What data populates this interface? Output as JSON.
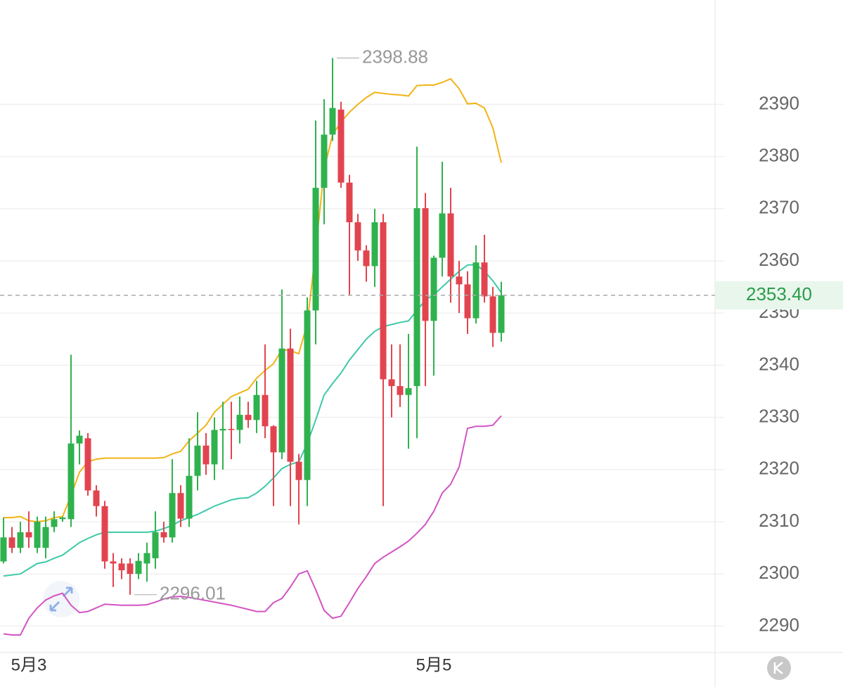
{
  "chart_data": {
    "type": "candlestick",
    "categories": [
      null,
      null,
      null,
      "5月3",
      null,
      null,
      null,
      null,
      null,
      null,
      null,
      null,
      null,
      null,
      null,
      null,
      null,
      null,
      null,
      null,
      null,
      null,
      null,
      null,
      null,
      null,
      null,
      null,
      null,
      null,
      null,
      null,
      null,
      null,
      null,
      null,
      null,
      null,
      null,
      null,
      null,
      null,
      null,
      null,
      null,
      null,
      null,
      null,
      null,
      null,
      null,
      "5月5",
      null,
      null,
      null,
      null,
      null,
      null,
      null,
      null
    ],
    "open": [
      2302.4,
      2307,
      2305,
      2308,
      2305,
      2305,
      2309,
      2310.5,
      2310.5,
      2325,
      2326,
      2316,
      2313,
      2302.4,
      2302,
      2302,
      2300,
      2302,
      2303,
      2308,
      2307,
      2315.5,
      2310.6,
      2318.8,
      2324.6,
      2321,
      2327.5,
      2327.8,
      2327.6,
      2330.5,
      2329.5,
      2334.3,
      2328.3,
      2323.3,
      2343.2,
      2321.5,
      2318,
      2350.5,
      2374,
      2384.2,
      2389,
      2375,
      2367.4,
      2362,
      2359,
      2367.4,
      2337.3,
      2336,
      2334.3,
      2336,
      2370.1,
      2348.5,
      2360.6,
      2369.1,
      2357,
      2355.5,
      2349,
      2359.7,
      2353.2,
      2346.2
    ],
    "high": [
      2310.8,
      2309,
      2310,
      2312,
      2311,
      2311,
      2312,
      2311,
      2342,
      2327.5,
      2327,
      2317,
      2314,
      2304,
      2303,
      2303,
      2304,
      2306,
      2312,
      2310,
      2322,
      2317,
      2326,
      2331,
      2327,
      2330,
      2333,
      2333,
      2334,
      2333,
      2337,
      2344,
      2328.5,
      2354.5,
      2347,
      2323,
      2353,
      2386.9,
      2391,
      2398.88,
      2390.5,
      2376.5,
      2369,
      2363,
      2370,
      2369,
      2344,
      2344,
      2346,
      2381.9,
      2373,
      2361,
      2379,
      2374,
      2360,
      2358,
      2363,
      2365,
      2355,
      2356
    ],
    "low": [
      2302,
      2304,
      2304,
      2305,
      2304,
      2303,
      2308,
      2310,
      2309,
      2321,
      2315,
      2311,
      2301,
      2297.5,
      2299,
      2296.01,
      2299,
      2298.5,
      2301,
      2306,
      2306,
      2309,
      2309,
      2316,
      2319,
      2318,
      2320,
      2322,
      2325,
      2328,
      2327,
      2326,
      2313,
      2322,
      2313,
      2309.5,
      2313,
      2344,
      2367,
      2383,
      2374,
      2353.5,
      2360,
      2356,
      2355,
      2313,
      2330,
      2332,
      2324,
      2326,
      2336,
      2338,
      2357,
      2352,
      2350,
      2346,
      2348,
      2352,
      2343.5,
      2344.5
    ],
    "close": [
      2307,
      2305,
      2308,
      2307,
      2310,
      2309,
      2310.5,
      2310.8,
      2325,
      2326.5,
      2316,
      2313,
      2302.4,
      2302,
      2300.7,
      2300,
      2302.5,
      2304,
      2308,
      2307,
      2315.5,
      2310.6,
      2318.8,
      2324.6,
      2321,
      2327.6,
      2327.8,
      2327.6,
      2330.5,
      2329.5,
      2334.3,
      2328.3,
      2323.3,
      2343.2,
      2321.5,
      2318,
      2350.5,
      2374,
      2384.2,
      2389.3,
      2375,
      2367.4,
      2362,
      2359,
      2367.4,
      2337.3,
      2336,
      2334.3,
      2335.6,
      2370.1,
      2348.5,
      2360.6,
      2369.1,
      2357,
      2355.5,
      2349,
      2359.7,
      2353.2,
      2346.2,
      2353.4
    ],
    "up_color": "#2fb24e",
    "down_color": "#e2444f",
    "lines": [
      {
        "color": "#f2b316",
        "values": [
          2310.8,
          2310.8,
          2311,
          2310.2,
          2310,
          2310.2,
          2310.8,
          2311,
          2315,
          2319.5,
          2321.5,
          2322,
          2322.2,
          2322.2,
          2322.2,
          2322.2,
          2322.2,
          2322.2,
          2322.2,
          2322.3,
          2323,
          2323.5,
          2325.5,
          2327,
          2328.5,
          2331,
          2332.5,
          2334,
          2334.7,
          2335.4,
          2337.5,
          2339,
          2340.3,
          2343,
          2342.8,
          2342.2,
          2348,
          2362,
          2377.5,
          2384.2,
          2386.6,
          2388.5,
          2390,
          2391.3,
          2392.3,
          2392.1,
          2391.9,
          2391.8,
          2391.6,
          2393.6,
          2393.7,
          2393.7,
          2394.2,
          2394.9,
          2393,
          2390.1,
          2390.2,
          2389.3,
          2385.5,
          2378.8
        ]
      },
      {
        "color": "#3dc9a8",
        "values": [
          2299.6,
          2299.8,
          2300,
          2301,
          2302,
          2302.3,
          2303,
          2303.6,
          2304.8,
          2306,
          2306.8,
          2307.5,
          2308,
          2308,
          2308,
          2308,
          2308,
          2308,
          2308.2,
          2308.7,
          2309.3,
          2310.2,
          2310.8,
          2311.4,
          2312.2,
          2313,
          2313.6,
          2314.2,
          2314.5,
          2314.6,
          2315.5,
          2316.8,
          2318.4,
          2320.2,
          2321,
          2321.5,
          2325,
          2329.5,
          2334.3,
          2336.5,
          2338.5,
          2341,
          2343,
          2345,
          2346.5,
          2347.4,
          2347.8,
          2348.2,
          2348.5,
          2350.5,
          2352.5,
          2353.5,
          2355,
          2356.5,
          2358,
          2359.2,
          2359.3,
          2358,
          2356.2,
          2353.9
        ]
      },
      {
        "color": "#d254c4",
        "values": [
          2288.5,
          2288.3,
          2288.3,
          2291.5,
          2293.5,
          2295,
          2295.8,
          2296.3,
          2294,
          2292.6,
          2292.8,
          2293.5,
          2294.2,
          2294.1,
          2294,
          2294,
          2294,
          2294.1,
          2294.6,
          2295.2,
          2295.6,
          2295.7,
          2295.5,
          2295.2,
          2294.9,
          2294.6,
          2294.3,
          2294,
          2293.6,
          2293.2,
          2292.8,
          2292.8,
          2294.5,
          2295.3,
          2297.5,
          2300,
          2300.6,
          2297,
          2293,
          2291.5,
          2291.9,
          2294.5,
          2297.2,
          2299.5,
          2302,
          2303.2,
          2304.2,
          2305.2,
          2306.3,
          2307.8,
          2309.5,
          2312,
          2315.5,
          2317.2,
          2320.5,
          2327.9,
          2328.3,
          2328.3,
          2328.5,
          2330.3
        ]
      }
    ],
    "max_label": "2398.88",
    "min_label": "2296.01",
    "last_label": "2353.40",
    "ylim": [
      2285,
      2410
    ],
    "yticks": [
      2290,
      2300,
      2310,
      2320,
      2330,
      2340,
      2350,
      2360,
      2370,
      2380,
      2390
    ],
    "grid": true
  }
}
